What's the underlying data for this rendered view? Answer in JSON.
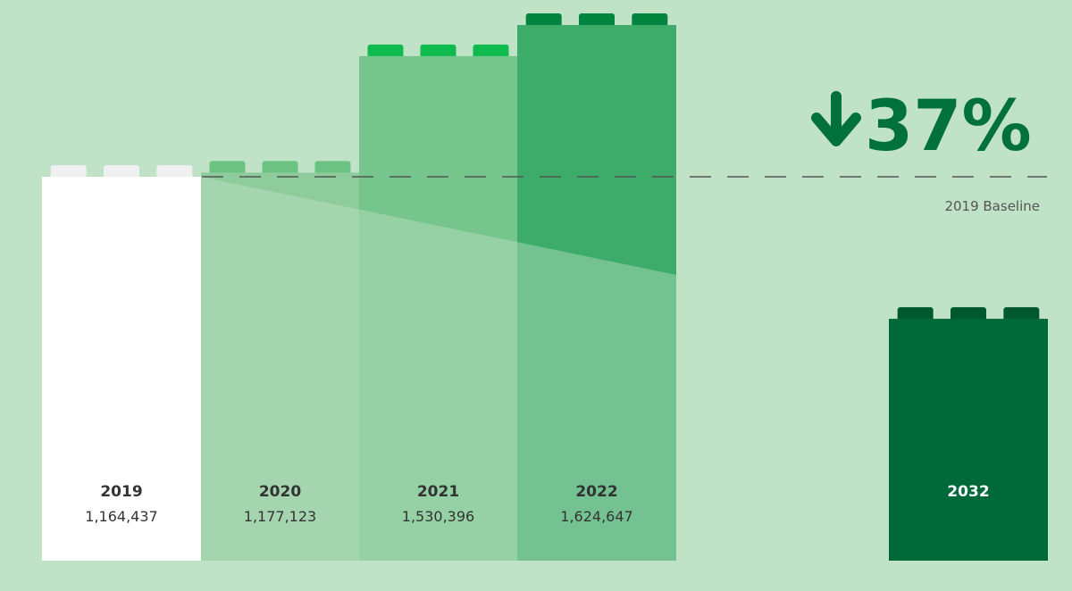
{
  "chart_data": {
    "type": "bar",
    "categories": [
      "2019",
      "2020",
      "2021",
      "2022",
      "2032"
    ],
    "values": [
      1164437,
      1177123,
      1530396,
      1624647,
      733595
    ],
    "value_labels": [
      "1,164,437",
      "1,177,123",
      "1,530,396",
      "1,624,647",
      ""
    ],
    "baseline_label": "2019 Baseline",
    "baseline_value": 1164437,
    "reduction_label": "37%",
    "reduction_direction": "down",
    "title": "",
    "xlabel": "",
    "ylabel": "",
    "ylim": [
      0,
      1624647
    ],
    "grid": false,
    "legend": "none",
    "bar_colors": [
      "#ffffff",
      "#8fcc9b",
      "#76c58c",
      "#3dab6a",
      "#00693a"
    ],
    "stud_colors": [
      "#f0f0f0",
      "#6cc283",
      "#0fba4e",
      "#00843e",
      "#00582e"
    ],
    "text_colors": [
      "#333333",
      "#333333",
      "#333333",
      "#333333",
      "#ffffff"
    ]
  },
  "colors": {
    "background": "#c0e2c7",
    "accent": "#00703c",
    "baseline_dash": "#555555",
    "annotation_text": "#555555"
  }
}
